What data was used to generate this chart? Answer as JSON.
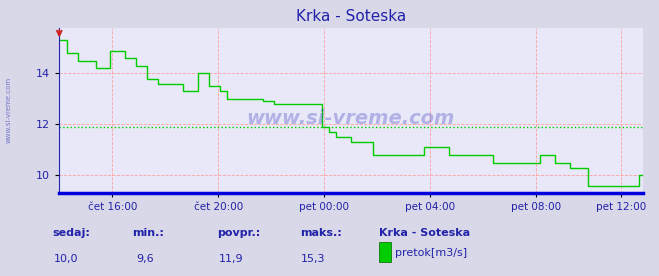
{
  "title": "Krka - Soteska",
  "title_color": "#2222aa",
  "bg_color": "#d8d8e8",
  "plot_bg_color": "#e8e8f8",
  "line_color": "#00cc00",
  "line_width": 1.0,
  "axis_color": "#2222aa",
  "tick_color": "#2222aa",
  "grid_color": "#ff9999",
  "avg_line_color": "#00cc00",
  "avg_value": 11.9,
  "x_labels": [
    "čet 16:00",
    "čet 20:00",
    "pet 00:00",
    "pet 04:00",
    "pet 08:00",
    "pet 12:00"
  ],
  "x_ticks_norm": [
    0.0909,
    0.2727,
    0.4545,
    0.6364,
    0.8182,
    0.9636
  ],
  "y_ticks": [
    10,
    12,
    14
  ],
  "ylim": [
    9.3,
    15.8
  ],
  "footer_labels": [
    "sedaj:",
    "min.:",
    "povpr.:",
    "maks.:"
  ],
  "footer_values": [
    "10,0",
    "9,6",
    "11,9",
    "15,3"
  ],
  "footer_legend_label": "pretok[m3/s]",
  "footer_station": "Krka - Soteska",
  "watermark": "www.si-vreme.com",
  "watermark_color": "#3333bb",
  "watermark_alpha": 0.3,
  "arrow_color": "#cc2222",
  "bottom_line_color": "#0000dd",
  "left_label": "www.si-vreme.com",
  "data_y": [
    15.3,
    15.3,
    14.8,
    14.8,
    14.8,
    14.5,
    14.5,
    14.5,
    14.5,
    14.5,
    14.2,
    14.2,
    14.2,
    14.2,
    14.9,
    14.9,
    14.9,
    14.9,
    14.6,
    14.6,
    14.6,
    14.3,
    14.3,
    14.3,
    13.8,
    13.8,
    13.8,
    13.6,
    13.6,
    13.6,
    13.6,
    13.6,
    13.6,
    13.6,
    13.3,
    13.3,
    13.3,
    13.3,
    14.0,
    14.0,
    14.0,
    13.5,
    13.5,
    13.5,
    13.3,
    13.3,
    13.0,
    13.0,
    13.0,
    13.0,
    13.0,
    13.0,
    13.0,
    13.0,
    13.0,
    13.0,
    12.9,
    12.9,
    12.9,
    12.8,
    12.8,
    12.8,
    12.8,
    12.8,
    12.8,
    12.8,
    12.8,
    12.8,
    12.8,
    12.8,
    12.8,
    12.8,
    11.9,
    11.9,
    11.7,
    11.7,
    11.5,
    11.5,
    11.5,
    11.5,
    11.3,
    11.3,
    11.3,
    11.3,
    11.3,
    11.3,
    10.8,
    10.8,
    10.8,
    10.8,
    10.8,
    10.8,
    10.8,
    10.8,
    10.8,
    10.8,
    10.8,
    10.8,
    10.8,
    10.8,
    11.1,
    11.1,
    11.1,
    11.1,
    11.1,
    11.1,
    11.1,
    10.8,
    10.8,
    10.8,
    10.8,
    10.8,
    10.8,
    10.8,
    10.8,
    10.8,
    10.8,
    10.8,
    10.8,
    10.5,
    10.5,
    10.5,
    10.5,
    10.5,
    10.5,
    10.5,
    10.5,
    10.5,
    10.5,
    10.5,
    10.5,
    10.5,
    10.8,
    10.8,
    10.8,
    10.8,
    10.5,
    10.5,
    10.5,
    10.5,
    10.3,
    10.3,
    10.3,
    10.3,
    10.3,
    9.6,
    9.6,
    9.6,
    9.6,
    9.6,
    9.6,
    9.6,
    9.6,
    9.6,
    9.6,
    9.6,
    9.6,
    9.6,
    9.6,
    10.0,
    10.0
  ]
}
